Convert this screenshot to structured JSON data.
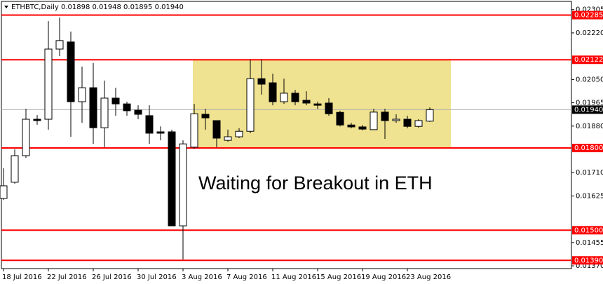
{
  "chart_data": {
    "type": "candlestick",
    "title": "ETHBTC,Daily  0.01898 0.01948 0.01895 0.01940",
    "annotation": "Waiting for Breakout in ETH",
    "categories": [
      "18 Jul 2016",
      null,
      null,
      null,
      "22 Jul 2016",
      null,
      null,
      null,
      "26 Jul 2016",
      null,
      null,
      null,
      "30 Jul 2016",
      null,
      null,
      null,
      "3 Aug 2016",
      null,
      null,
      null,
      "7 Aug 2016",
      null,
      null,
      null,
      "11 Aug 2016",
      null,
      null,
      null,
      "15 Aug 2016",
      null,
      null,
      null,
      "19 Aug 2016",
      null,
      null,
      null,
      "23 Aug 2016",
      null,
      null
    ],
    "open": [
      0.01616,
      0.01675,
      0.01772,
      0.01905,
      0.01905,
      0.02161,
      0.02187,
      0.01969,
      0.0202,
      0.01874,
      0.01982,
      0.01961,
      0.01938,
      0.01918,
      0.01859,
      0.01859,
      0.01516,
      0.01803,
      0.01923,
      0.019,
      0.01828,
      0.01841,
      0.01861,
      0.02053,
      0.02038,
      0.01969,
      0.02,
      0.01974,
      0.01961,
      0.01964,
      0.0193,
      0.01884,
      0.01877,
      0.01867,
      0.01931,
      0.019,
      0.01905,
      0.01879,
      0.01898
    ],
    "high": [
      0.01726,
      0.01795,
      0.01943,
      0.0192,
      0.02263,
      0.02276,
      0.02225,
      0.02097,
      0.0211,
      0.02046,
      0.0202,
      0.01969,
      0.01956,
      0.01956,
      0.01879,
      0.01867,
      0.01828,
      0.01961,
      0.01943,
      0.019,
      0.01867,
      0.01872,
      0.02123,
      0.02123,
      0.02071,
      0.02053,
      0.02012,
      0.02007,
      0.01969,
      0.01982,
      0.01936,
      0.01892,
      0.01884,
      0.01943,
      0.01943,
      0.01923,
      0.01918,
      0.01905,
      0.01948
    ],
    "low": [
      0.0161,
      0.0167,
      0.01764,
      0.01885,
      0.01867,
      0.02135,
      0.01841,
      0.01892,
      0.01815,
      0.01803,
      0.01918,
      0.01918,
      0.01905,
      0.01815,
      0.01828,
      0.01516,
      0.01393,
      0.01797,
      0.01867,
      0.01803,
      0.01823,
      0.01836,
      0.01854,
      0.01995,
      0.01956,
      0.01961,
      0.01956,
      0.01956,
      0.01943,
      0.01918,
      0.01879,
      0.01872,
      0.01864,
      0.01867,
      0.01833,
      0.01892,
      0.01872,
      0.01874,
      0.01895
    ],
    "close": [
      0.01662,
      0.01772,
      0.01905,
      0.019,
      0.02161,
      0.02192,
      0.01969,
      0.0202,
      0.01874,
      0.01982,
      0.01961,
      0.01936,
      0.01923,
      0.01854,
      0.01854,
      0.01516,
      0.01815,
      0.01925,
      0.0191,
      0.01836,
      0.01841,
      0.01861,
      0.02053,
      0.02033,
      0.01969,
      0.02,
      0.01969,
      0.01964,
      0.01956,
      0.01925,
      0.01884,
      0.01877,
      0.01869,
      0.01931,
      0.019,
      0.01905,
      0.01879,
      0.019,
      0.0194
    ],
    "up_color": "#ffffff",
    "down_color": "#000000",
    "ylim": [
      0.0136,
      0.02335
    ],
    "yticks": [
      {
        "value": 0.02305,
        "label": "0.02305"
      },
      {
        "value": 0.0222,
        "label": "0.02220"
      },
      {
        "value": 0.0205,
        "label": "0.02050"
      },
      {
        "value": 0.01965,
        "label": "0.01965"
      },
      {
        "value": 0.0188,
        "label": "0.01880"
      },
      {
        "value": 0.0171,
        "label": "0.01710"
      },
      {
        "value": 0.01625,
        "label": "0.01625"
      },
      {
        "value": 0.01455,
        "label": "0.01455"
      },
      {
        "value": 0.0137,
        "label": "0.01370"
      }
    ],
    "hlines": [
      {
        "value": 0.02285,
        "label": "0.02285"
      },
      {
        "value": 0.02122,
        "label": "0.02122"
      },
      {
        "value": 0.018,
        "label": "0.01800"
      },
      {
        "value": 0.015,
        "label": "0.01500"
      },
      {
        "value": 0.0139,
        "label": "0.01390"
      }
    ],
    "hline_color": "#ff0000",
    "last_price": {
      "value": 0.0194,
      "label": "0.01940"
    },
    "zone_color": "#efe290"
  }
}
